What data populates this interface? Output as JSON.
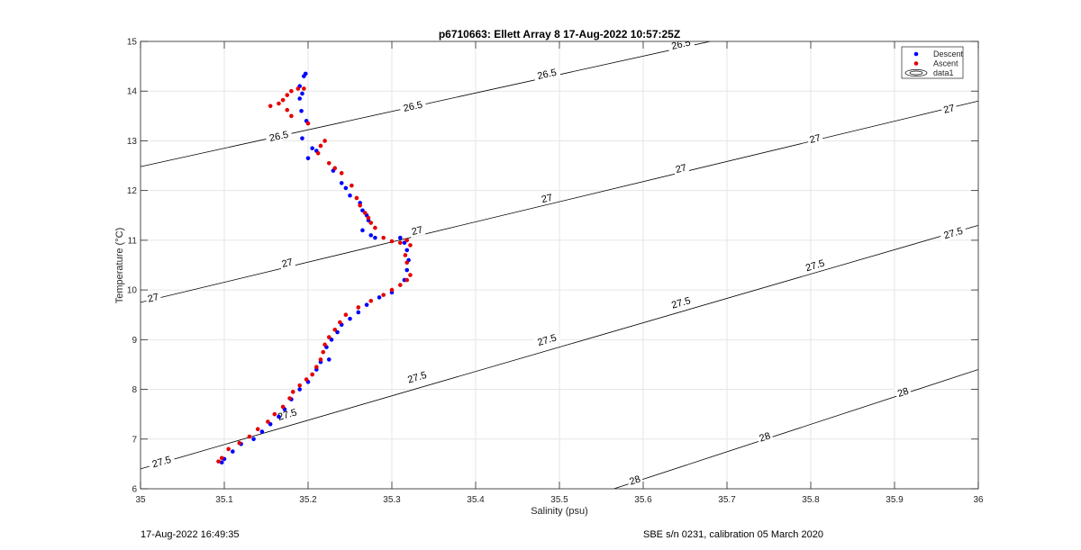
{
  "chart_data": {
    "type": "scatter",
    "title": "p6710663: Ellett Array 8 17-Aug-2022 10:57:25Z",
    "xlabel": "Salinity (psu)",
    "ylabel": "Temperature (°C)",
    "xlim": [
      35,
      36
    ],
    "ylim": [
      6,
      15
    ],
    "xticks": [
      35,
      35.1,
      35.2,
      35.3,
      35.4,
      35.5,
      35.6,
      35.7,
      35.8,
      35.9,
      36
    ],
    "xtick_labels": [
      "35",
      "35.1",
      "35.2",
      "35.3",
      "35.4",
      "35.5",
      "35.6",
      "35.7",
      "35.8",
      "35.9",
      "36"
    ],
    "yticks": [
      6,
      7,
      8,
      9,
      10,
      11,
      12,
      13,
      14,
      15
    ],
    "ytick_labels": [
      "6",
      "7",
      "8",
      "9",
      "10",
      "11",
      "12",
      "13",
      "14",
      "15"
    ],
    "grid": true,
    "legend_position": "top-right",
    "legend": [
      "Descent",
      "Ascent",
      "data1"
    ],
    "series": [
      {
        "name": "Descent",
        "color": "#0000ff",
        "points": [
          [
            35.197,
            14.35
          ],
          [
            35.195,
            14.3
          ],
          [
            35.19,
            14.1
          ],
          [
            35.193,
            13.95
          ],
          [
            35.19,
            13.85
          ],
          [
            35.192,
            13.6
          ],
          [
            35.198,
            13.4
          ],
          [
            35.193,
            13.05
          ],
          [
            35.2,
            12.65
          ],
          [
            35.205,
            12.85
          ],
          [
            35.21,
            12.8
          ],
          [
            35.23,
            12.4
          ],
          [
            35.24,
            12.15
          ],
          [
            35.245,
            12.05
          ],
          [
            35.25,
            11.9
          ],
          [
            35.262,
            11.75
          ],
          [
            35.265,
            11.6
          ],
          [
            35.27,
            11.5
          ],
          [
            35.272,
            11.4
          ],
          [
            35.265,
            11.2
          ],
          [
            35.275,
            11.1
          ],
          [
            35.28,
            11.05
          ],
          [
            35.31,
            11.05
          ],
          [
            35.315,
            10.95
          ],
          [
            35.318,
            10.8
          ],
          [
            35.32,
            10.6
          ],
          [
            35.318,
            10.4
          ],
          [
            35.315,
            10.2
          ],
          [
            35.3,
            9.95
          ],
          [
            35.285,
            9.85
          ],
          [
            35.27,
            9.7
          ],
          [
            35.26,
            9.55
          ],
          [
            35.25,
            9.42
          ],
          [
            35.24,
            9.3
          ],
          [
            35.235,
            9.15
          ],
          [
            35.228,
            9.0
          ],
          [
            35.222,
            8.85
          ],
          [
            35.225,
            8.6
          ],
          [
            35.215,
            8.55
          ],
          [
            35.21,
            8.4
          ],
          [
            35.205,
            8.3
          ],
          [
            35.2,
            8.15
          ],
          [
            35.19,
            8.0
          ],
          [
            35.18,
            7.8
          ],
          [
            35.172,
            7.6
          ],
          [
            35.165,
            7.45
          ],
          [
            35.155,
            7.3
          ],
          [
            35.145,
            7.15
          ],
          [
            35.135,
            7.0
          ],
          [
            35.12,
            6.9
          ],
          [
            35.11,
            6.75
          ],
          [
            35.1,
            6.6
          ],
          [
            35.097,
            6.53
          ]
        ]
      },
      {
        "name": "Ascent",
        "color": "#e60000",
        "points": [
          [
            35.195,
            14.05
          ],
          [
            35.188,
            14.05
          ],
          [
            35.18,
            14.0
          ],
          [
            35.175,
            13.92
          ],
          [
            35.17,
            13.82
          ],
          [
            35.165,
            13.75
          ],
          [
            35.155,
            13.7
          ],
          [
            35.175,
            13.62
          ],
          [
            35.18,
            13.5
          ],
          [
            35.2,
            13.35
          ],
          [
            35.22,
            13.0
          ],
          [
            35.215,
            12.9
          ],
          [
            35.212,
            12.75
          ],
          [
            35.225,
            12.55
          ],
          [
            35.232,
            12.45
          ],
          [
            35.24,
            12.35
          ],
          [
            35.252,
            12.1
          ],
          [
            35.258,
            11.85
          ],
          [
            35.262,
            11.7
          ],
          [
            35.268,
            11.55
          ],
          [
            35.272,
            11.45
          ],
          [
            35.275,
            11.35
          ],
          [
            35.28,
            11.25
          ],
          [
            35.29,
            11.05
          ],
          [
            35.3,
            10.98
          ],
          [
            35.31,
            10.95
          ],
          [
            35.318,
            11.0
          ],
          [
            35.322,
            10.9
          ],
          [
            35.316,
            10.7
          ],
          [
            35.318,
            10.55
          ],
          [
            35.322,
            10.3
          ],
          [
            35.318,
            10.2
          ],
          [
            35.31,
            10.1
          ],
          [
            35.3,
            10.0
          ],
          [
            35.29,
            9.9
          ],
          [
            35.275,
            9.78
          ],
          [
            35.26,
            9.65
          ],
          [
            35.245,
            9.5
          ],
          [
            35.238,
            9.35
          ],
          [
            35.232,
            9.2
          ],
          [
            35.225,
            9.05
          ],
          [
            35.22,
            8.9
          ],
          [
            35.218,
            8.75
          ],
          [
            35.215,
            8.6
          ],
          [
            35.21,
            8.45
          ],
          [
            35.205,
            8.3
          ],
          [
            35.198,
            8.2
          ],
          [
            35.19,
            8.08
          ],
          [
            35.182,
            7.95
          ],
          [
            35.178,
            7.82
          ],
          [
            35.17,
            7.65
          ],
          [
            35.16,
            7.5
          ],
          [
            35.152,
            7.35
          ],
          [
            35.14,
            7.2
          ],
          [
            35.13,
            7.05
          ],
          [
            35.118,
            6.92
          ],
          [
            35.105,
            6.8
          ],
          [
            35.097,
            6.62
          ],
          [
            35.093,
            6.55
          ]
        ]
      },
      {
        "name": "data1",
        "type": "contour",
        "color": "#000000",
        "labels": [
          "26.5",
          "27",
          "27.5",
          "28"
        ],
        "lines": [
          {
            "label": "26.5",
            "points": [
              [
                35,
                12.48
              ],
              [
                35.68,
                15
              ]
            ]
          },
          {
            "label": "27",
            "points": [
              [
                35,
                9.75
              ],
              [
                36,
                13.8
              ]
            ]
          },
          {
            "label": "27.5",
            "points": [
              [
                35,
                6.4
              ],
              [
                36,
                11.3
              ]
            ]
          },
          {
            "label": "28",
            "points": [
              [
                35.565,
                6
              ],
              [
                36,
                8.4
              ]
            ]
          }
        ],
        "label_positions": [
          {
            "text": "26.5",
            "at": [
              35.645,
              14.95
            ]
          },
          {
            "text": "26.5",
            "at": [
              35.485,
              14.35
            ]
          },
          {
            "text": "26.5",
            "at": [
              35.325,
              13.7
            ]
          },
          {
            "text": "26.5",
            "at": [
              35.165,
              13.1
            ]
          },
          {
            "text": "27",
            "at": [
              35.965,
              13.65
            ]
          },
          {
            "text": "27",
            "at": [
              35.805,
              13.05
            ]
          },
          {
            "text": "27",
            "at": [
              35.645,
              12.45
            ]
          },
          {
            "text": "27",
            "at": [
              35.485,
              11.85
            ]
          },
          {
            "text": "27",
            "at": [
              35.33,
              11.2
            ]
          },
          {
            "text": "27",
            "at": [
              35.175,
              10.55
            ]
          },
          {
            "text": "27",
            "at": [
              35.015,
              9.85
            ]
          },
          {
            "text": "27.5",
            "at": [
              35.97,
              11.15
            ]
          },
          {
            "text": "27.5",
            "at": [
              35.805,
              10.5
            ]
          },
          {
            "text": "27.5",
            "at": [
              35.645,
              9.75
            ]
          },
          {
            "text": "27.5",
            "at": [
              35.485,
              9.0
            ]
          },
          {
            "text": "27.5",
            "at": [
              35.33,
              8.25
            ]
          },
          {
            "text": "27.5",
            "at": [
              35.175,
              7.5
            ]
          },
          {
            "text": "27.5",
            "at": [
              35.025,
              6.55
            ]
          },
          {
            "text": "28",
            "at": [
              35.91,
              7.95
            ]
          },
          {
            "text": "28",
            "at": [
              35.745,
              7.05
            ]
          },
          {
            "text": "28",
            "at": [
              35.59,
              6.18
            ]
          }
        ]
      }
    ]
  },
  "footer": {
    "left": "17-Aug-2022 16:49:35",
    "right": "SBE s/n 0231, calibration 05 March 2020"
  }
}
